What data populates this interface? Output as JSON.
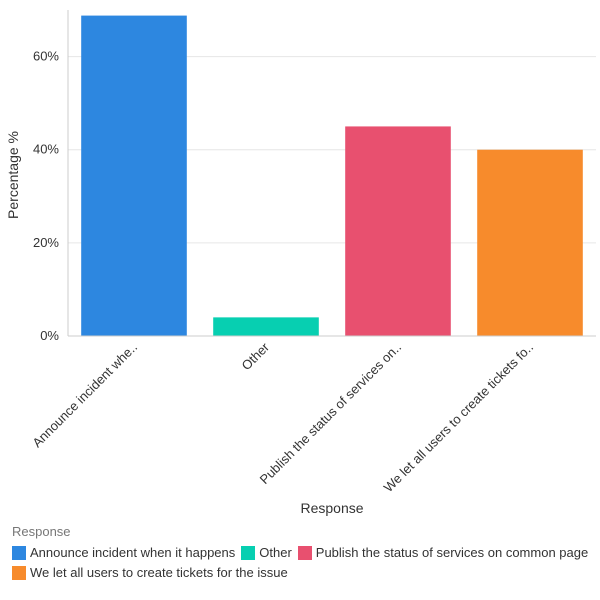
{
  "chart_data": {
    "type": "bar",
    "xlabel": "Response",
    "ylabel": "Percentage %",
    "ylim": [
      0,
      70
    ],
    "yticks": [
      0,
      20,
      40,
      60
    ],
    "ytick_suffix": "%",
    "grid": true,
    "legend_position": "bottom-left",
    "legend_title": "Response",
    "categories": [
      "Announce incident when it happens",
      "Other",
      "Publish the status of services on common page",
      "We let all users to create tickets for the issue"
    ],
    "category_tick_labels": [
      "Announce incident whe..",
      "Other",
      "Publish the status of services on..",
      "We let all users to create tickets fo.."
    ],
    "values": [
      68.8,
      4,
      45,
      40
    ],
    "colors": [
      "#2d87e0",
      "#07cfb1",
      "#e8506f",
      "#f78b2c"
    ]
  }
}
